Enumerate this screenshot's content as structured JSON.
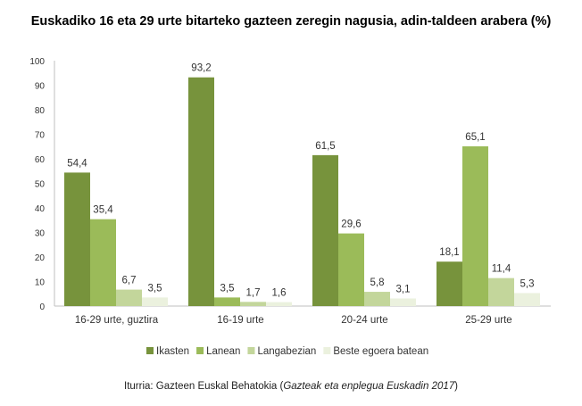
{
  "chart_data": {
    "type": "bar",
    "title": "Euskadiko  16 eta 29 urte bitarteko gazteen zeregin nagusia, adin-taldeen arabera (%)",
    "categories": [
      "16-29 urte, guztira",
      "16-19 urte",
      "20-24 urte",
      "25-29 urte"
    ],
    "series": [
      {
        "name": "Ikasten",
        "color": "#77933c",
        "values": [
          54.4,
          93.2,
          61.5,
          18.1
        ],
        "labels": [
          "54,4",
          "93,2",
          "61,5",
          "18,1"
        ]
      },
      {
        "name": "Lanean",
        "color": "#9bbb59",
        "values": [
          35.4,
          3.5,
          29.6,
          65.1
        ],
        "labels": [
          "35,4",
          "3,5",
          "29,6",
          "65,1"
        ]
      },
      {
        "name": "Langabezian",
        "color": "#c3d69b",
        "values": [
          6.7,
          1.7,
          5.8,
          11.4
        ],
        "labels": [
          "6,7",
          "1,7",
          "5,8",
          "11,4"
        ]
      },
      {
        "name": "Beste egoera batean",
        "color": "#ebf1de",
        "values": [
          3.5,
          1.6,
          3.1,
          5.3
        ],
        "labels": [
          "3,5",
          "1,6",
          "3,1",
          "5,3"
        ]
      }
    ],
    "yticks": [
      "0",
      "10",
      "20",
      "30",
      "40",
      "50",
      "60",
      "70",
      "80",
      "90",
      "100"
    ],
    "ylim": [
      0,
      100
    ],
    "xlabel": "",
    "ylabel": "",
    "grid": false,
    "legend": "bottom"
  },
  "source": {
    "prefix": "Iturria: Gazteen Euskal Behatokia (",
    "italic": "Gazteak eta enplegua Euskadin 2017",
    "suffix": ")"
  }
}
